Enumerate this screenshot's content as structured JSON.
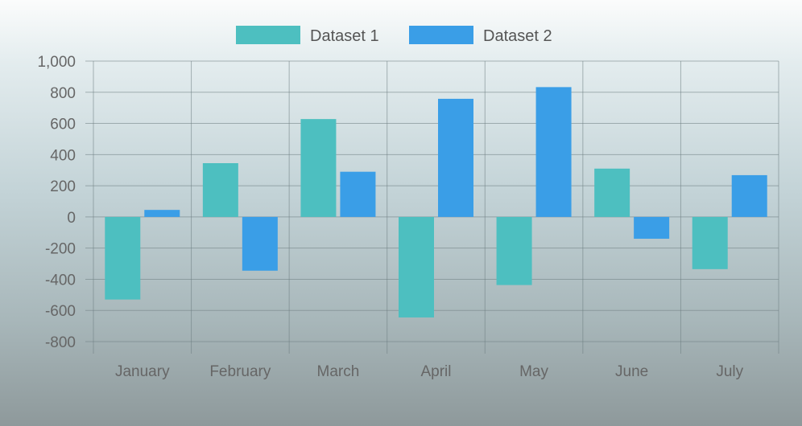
{
  "chart_data": {
    "type": "bar",
    "title": "",
    "xlabel": "",
    "ylabel": "",
    "categories": [
      "January",
      "February",
      "March",
      "April",
      "May",
      "June",
      "July"
    ],
    "series": [
      {
        "name": "Dataset 1",
        "color": "#4dbfc0",
        "values": [
          -530,
          345,
          628,
          -645,
          -437,
          310,
          -335
        ]
      },
      {
        "name": "Dataset 2",
        "color": "#3a9ee7",
        "values": [
          45,
          -345,
          290,
          758,
          833,
          -140,
          268
        ]
      }
    ],
    "ylim": [
      -800,
      1000
    ],
    "yticks": [
      "1,000",
      "800",
      "600",
      "400",
      "200",
      "0",
      "-200",
      "-400",
      "-600",
      "-800"
    ],
    "grid": true,
    "legend_position": "top"
  }
}
